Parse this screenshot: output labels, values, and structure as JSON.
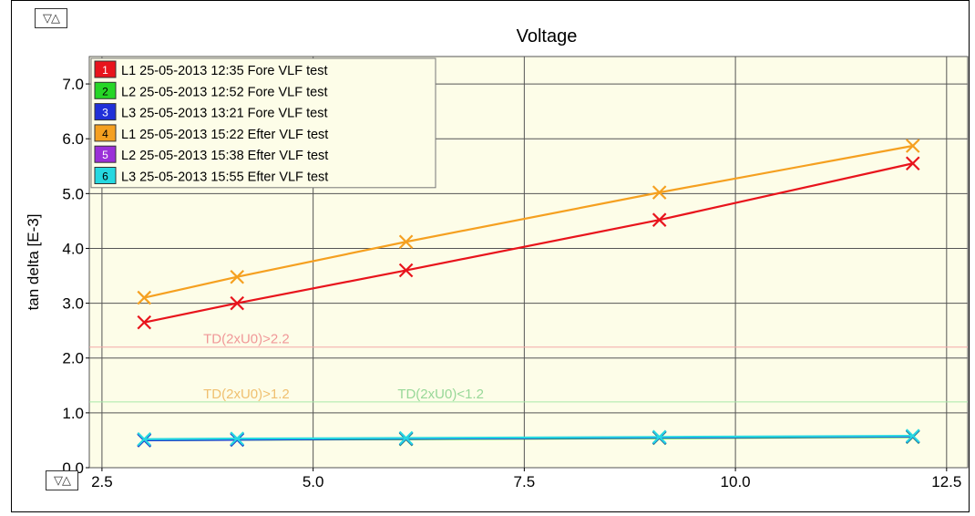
{
  "controls": {
    "sort_top_label": "▽△",
    "sort_bottom_label": "▽△"
  },
  "chart_data": {
    "type": "line",
    "title": "Voltage",
    "xlabel": "",
    "ylabel": "tan delta [E-3]",
    "xlim": [
      2.35,
      12.75
    ],
    "ylim": [
      0.0,
      7.5
    ],
    "x_ticks": [
      2.5,
      5.0,
      7.5,
      10.0,
      12.5
    ],
    "x_tick_labels": [
      "2.5",
      "5.0",
      "7.5",
      "10.0",
      "12.5"
    ],
    "y_ticks": [
      0.0,
      1.0,
      2.0,
      3.0,
      4.0,
      5.0,
      6.0,
      7.0
    ],
    "y_tick_labels": [
      "0.0",
      "1.0",
      "2.0",
      "3.0",
      "4.0",
      "5.0",
      "6.0",
      "7.0"
    ],
    "grid": true,
    "background": "#fdfde8",
    "legend_position": "top-left",
    "series": [
      {
        "num": "1",
        "name": "L1 25-05-2013 12:35 Fore VLF test",
        "color": "#e8141c",
        "x": [
          3.0,
          4.1,
          6.1,
          9.1,
          12.1
        ],
        "y": [
          2.65,
          3.0,
          3.6,
          4.52,
          5.55
        ]
      },
      {
        "num": "2",
        "name": "L2 25-05-2013 12:52 Fore VLF test",
        "color": "#26d626",
        "x": [
          3.0,
          4.1,
          6.1,
          9.1,
          12.1
        ],
        "y": [
          0.5,
          0.51,
          0.52,
          0.54,
          0.56
        ]
      },
      {
        "num": "3",
        "name": "L3 25-05-2013 13:21 Fore VLF test",
        "color": "#2030d8",
        "x": [
          3.0,
          4.1,
          6.1,
          9.1,
          12.1
        ],
        "y": [
          0.5,
          0.51,
          0.53,
          0.55,
          0.57
        ]
      },
      {
        "num": "4",
        "name": "L1 25-05-2013 15:22 Efter VLF test",
        "color": "#f5a020",
        "x": [
          3.0,
          4.1,
          6.1,
          9.1,
          12.1
        ],
        "y": [
          3.1,
          3.48,
          4.12,
          5.02,
          5.87
        ]
      },
      {
        "num": "5",
        "name": "L2 25-05-2013 15:38 Efter VLF test",
        "color": "#9b30d8",
        "x": [
          3.0,
          4.1,
          6.1,
          9.1,
          12.1
        ],
        "y": [
          0.51,
          0.52,
          0.53,
          0.55,
          0.57
        ]
      },
      {
        "num": "6",
        "name": "L3 25-05-2013 15:55 Efter VLF test",
        "color": "#26d8e0",
        "x": [
          3.0,
          4.1,
          6.1,
          9.1,
          12.1
        ],
        "y": [
          0.52,
          0.53,
          0.54,
          0.56,
          0.58
        ]
      }
    ],
    "reference_lines": [
      {
        "y": 2.2,
        "color": "#f4a8a8",
        "labels": [
          {
            "text": "TD(2xU0)>2.2",
            "x": 3.7,
            "color": "#f09898"
          }
        ]
      },
      {
        "y": 1.2,
        "color": "#a8e8a8",
        "labels": [
          {
            "text": "TD(2xU0)>1.2",
            "x": 3.7,
            "color": "#f0c070"
          },
          {
            "text": "TD(2xU0)<1.2",
            "x": 6.0,
            "color": "#98d898"
          }
        ]
      }
    ]
  }
}
